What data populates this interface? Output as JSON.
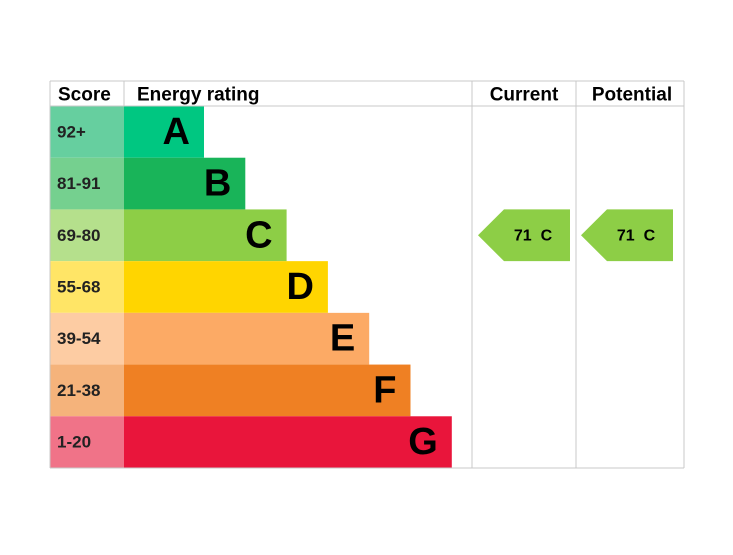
{
  "header": {
    "score": "Score",
    "energy_rating": "Energy rating",
    "current": "Current",
    "potential": "Potential"
  },
  "bands": [
    {
      "score": "92+",
      "letter": "A",
      "color": "#00c781",
      "light": "#66cf9f"
    },
    {
      "score": "81-91",
      "letter": "B",
      "color": "#19b459",
      "light": "#75d08f"
    },
    {
      "score": "69-80",
      "letter": "C",
      "color": "#8dce46",
      "light": "#b5e08c"
    },
    {
      "score": "55-68",
      "letter": "D",
      "color": "#ffd500",
      "light": "#ffe566"
    },
    {
      "score": "39-54",
      "letter": "E",
      "color": "#fcaa65",
      "light": "#fdcca3"
    },
    {
      "score": "21-38",
      "letter": "F",
      "color": "#ef8023",
      "light": "#f5b37b"
    },
    {
      "score": "1-20",
      "letter": "G",
      "color": "#e9153b",
      "light": "#f07388"
    }
  ],
  "current": {
    "score": 71,
    "band": "C"
  },
  "potential": {
    "score": 71,
    "band": "C"
  }
}
